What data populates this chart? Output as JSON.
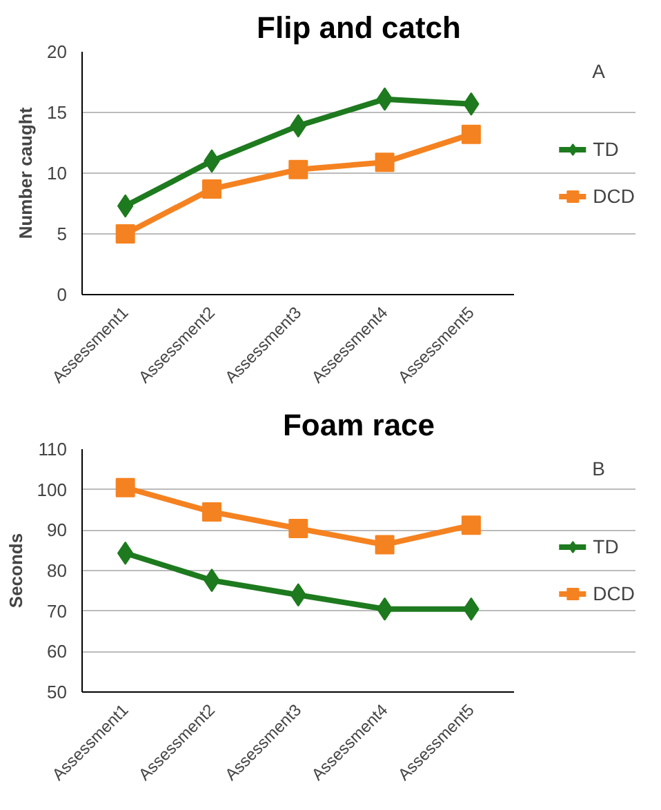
{
  "chart_data": [
    {
      "type": "line",
      "title": "Flip and catch",
      "ylabel": "Number caught",
      "annotations": [
        "A"
      ],
      "categories": [
        "Assessment1",
        "Assessment2",
        "Assessment3",
        "Assessment4",
        "Assessment5"
      ],
      "series": [
        {
          "name": "TD",
          "color": "#1e7a1e",
          "marker": "diamond",
          "values": [
            7.3,
            11.0,
            13.9,
            16.1,
            15.7
          ]
        },
        {
          "name": "DCD",
          "color": "#f58220",
          "marker": "square",
          "values": [
            5.0,
            8.7,
            10.3,
            10.9,
            13.2
          ]
        }
      ],
      "ylim": [
        0,
        20
      ],
      "yticks": [
        0,
        5,
        10,
        15,
        20
      ],
      "grid": "y",
      "legend": "right"
    },
    {
      "type": "line",
      "title": "Foam race",
      "ylabel": "Seconds",
      "annotations": [
        "B"
      ],
      "categories": [
        "Assessment1",
        "Assessment2",
        "Assessment3",
        "Assessment4",
        "Assessment5"
      ],
      "series": [
        {
          "name": "TD",
          "color": "#1e7a1e",
          "marker": "diamond",
          "values": [
            84.3,
            77.6,
            74.0,
            70.5,
            70.5
          ]
        },
        {
          "name": "DCD",
          "color": "#f58220",
          "marker": "square",
          "values": [
            100.5,
            94.5,
            90.4,
            86.4,
            91.2
          ]
        }
      ],
      "ylim": [
        50,
        110
      ],
      "yticks": [
        50,
        60,
        70,
        80,
        90,
        100,
        110
      ],
      "grid": "y",
      "legend": "right"
    }
  ]
}
